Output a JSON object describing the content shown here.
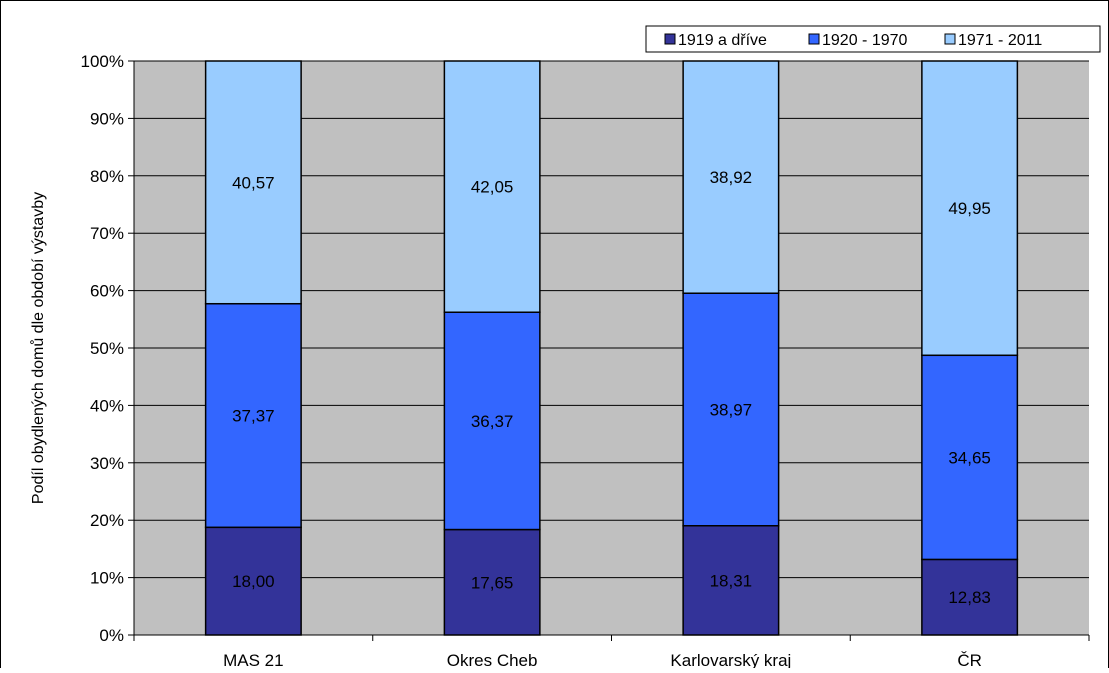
{
  "chart_data": {
    "type": "bar",
    "stacked": true,
    "percent_stacked": true,
    "title": "",
    "xlabel": "",
    "ylabel": "Podíl obydlených domů dle období výstavby",
    "ylim": [
      0,
      100
    ],
    "y_ticks": [
      "0%",
      "10%",
      "20%",
      "30%",
      "40%",
      "50%",
      "60%",
      "70%",
      "80%",
      "90%",
      "100%"
    ],
    "grid": true,
    "legend_position": "top-right",
    "categories": [
      "MAS 21",
      "Okres Cheb",
      "Karlovarský kraj",
      "ČR"
    ],
    "series": [
      {
        "name": "1919 a dříve",
        "color": "#333399",
        "values": [
          18.0,
          17.65,
          18.31,
          12.83
        ],
        "labels": [
          "18,00",
          "17,65",
          "18,31",
          "12,83"
        ]
      },
      {
        "name": "1920 - 1970",
        "color": "#3366ff",
        "values": [
          37.37,
          36.37,
          38.97,
          34.65
        ],
        "labels": [
          "37,37",
          "36,37",
          "38,97",
          "34,65"
        ]
      },
      {
        "name": "1971 - 2011",
        "color": "#99ccff",
        "values": [
          40.57,
          42.05,
          38.92,
          49.95
        ],
        "labels": [
          "40,57",
          "42,05",
          "38,92",
          "49,95"
        ]
      }
    ],
    "plot_background": "#c0c0c0"
  }
}
